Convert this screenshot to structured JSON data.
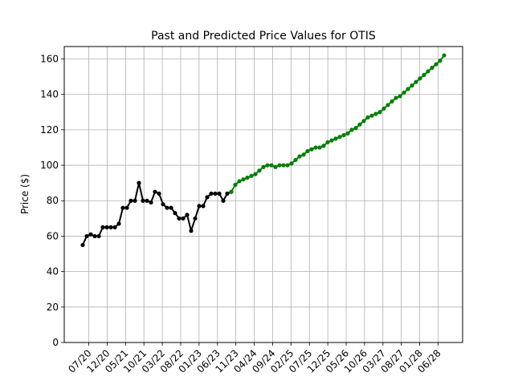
{
  "chart_data": {
    "type": "line",
    "title": "Past and Predicted Price Values for OTIS",
    "xlabel": "",
    "ylabel": "Price ($)",
    "ylim": [
      0,
      167
    ],
    "yticks": [
      0,
      20,
      40,
      60,
      80,
      100,
      120,
      140,
      160
    ],
    "grid": true,
    "x_ticks": [
      "07/20",
      "12/20",
      "05/21",
      "10/21",
      "03/22",
      "08/22",
      "01/23",
      "06/23",
      "11/23",
      "04/24",
      "09/24",
      "02/25",
      "07/25",
      "12/25",
      "05/26",
      "10/26",
      "03/27",
      "08/27",
      "01/28",
      "06/28"
    ],
    "series": [
      {
        "color": "#000000",
        "values": [
          55,
          60,
          61,
          60,
          60,
          65,
          65,
          65,
          65,
          67,
          76,
          76,
          80,
          80,
          90,
          80,
          80,
          79,
          85,
          84,
          78,
          76,
          76,
          73,
          70,
          70,
          72,
          63,
          70,
          77,
          77,
          82,
          84,
          84,
          84,
          80,
          84,
          85
        ]
      },
      {
        "color": "#008000",
        "values": [
          85,
          89,
          91,
          92,
          93,
          94,
          95,
          97,
          99,
          100,
          100,
          99,
          100,
          100,
          100,
          101,
          103,
          105,
          106,
          108,
          109,
          110,
          110,
          111,
          113,
          114,
          115,
          116,
          117,
          118,
          120,
          121,
          123,
          125,
          127,
          128,
          129,
          130,
          132,
          134,
          136,
          138,
          139,
          141,
          143,
          145,
          147,
          149,
          151,
          153,
          155,
          157,
          159,
          162
        ]
      }
    ]
  }
}
